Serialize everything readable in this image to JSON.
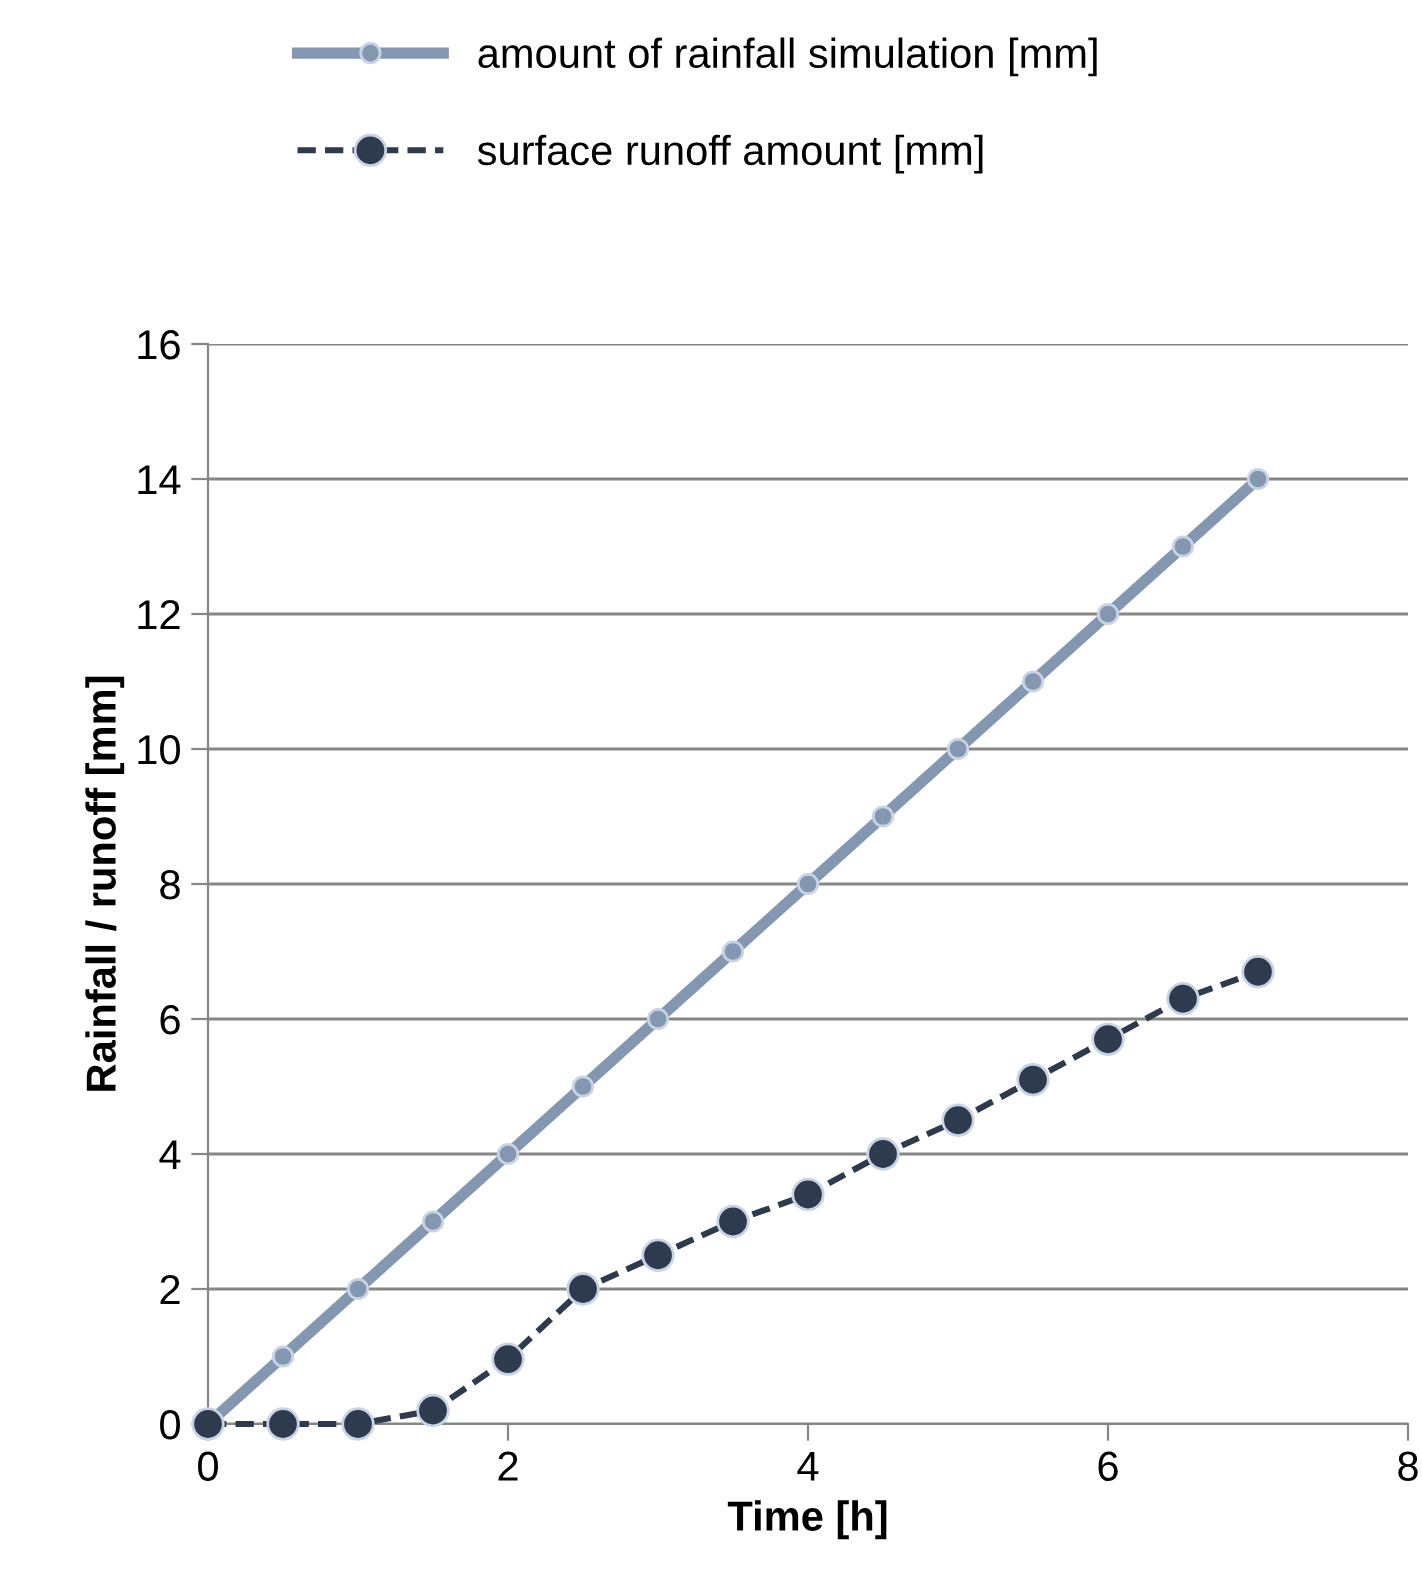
{
  "chart_data": {
    "type": "line",
    "xlabel": "Time [h]",
    "ylabel": "Rainfall / runoff [mm]",
    "xlim": [
      0,
      8
    ],
    "xticks": [
      0,
      2,
      4,
      6,
      8
    ],
    "ylim": [
      0,
      16
    ],
    "yticks": [
      0,
      2,
      4,
      6,
      8,
      10,
      12,
      14,
      16
    ],
    "grid": "y",
    "legend": "top",
    "marker": "circle",
    "series": [
      {
        "name": "amount of rainfall simulation [mm]",
        "color": "#8497b0",
        "line_style": "solid",
        "x": [
          0,
          0.5,
          1,
          1.5,
          2,
          2.5,
          3,
          3.5,
          4,
          4.5,
          5,
          5.5,
          6,
          6.5,
          7
        ],
        "values": [
          0,
          1,
          2,
          3,
          4,
          5,
          6,
          7,
          8,
          9,
          10,
          11,
          12,
          13,
          14
        ]
      },
      {
        "name": "surface runoff amount [mm]",
        "color": "#2e3a4e",
        "line_style": "dashed",
        "x": [
          0,
          0.5,
          1,
          1.5,
          2,
          2.5,
          3,
          3.5,
          4,
          4.5,
          5,
          5.5,
          6,
          6.5,
          7
        ],
        "values": [
          0,
          0,
          0,
          0.2,
          0.96,
          2.0,
          2.5,
          3.0,
          3.4,
          4.0,
          4.5,
          5.1,
          5.7,
          6.3,
          6.7
        ]
      }
    ]
  }
}
